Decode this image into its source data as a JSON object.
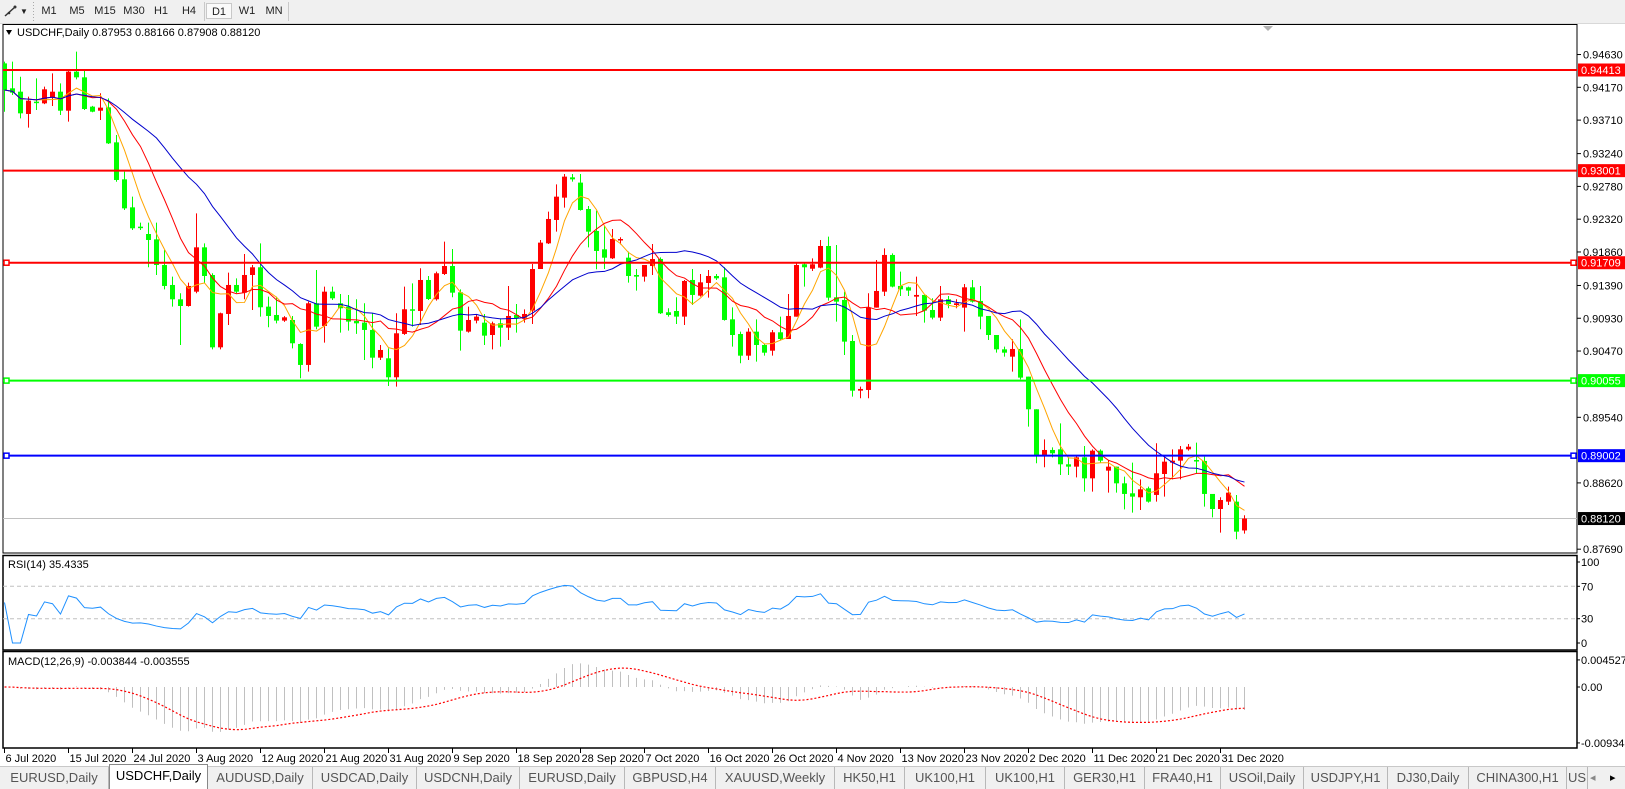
{
  "toolbar": {
    "drawing_tool_icon": "line-tool-icon",
    "timeframes": [
      "M1",
      "M5",
      "M15",
      "M30",
      "H1",
      "H4",
      "D1",
      "W1",
      "MN"
    ],
    "active_timeframe": "D1"
  },
  "chart": {
    "title": "USDCHF,Daily  0.87953 0.88166 0.87908 0.88120",
    "rsi_label": "RSI(14) 35.4335",
    "macd_label": "MACD(12,26,9) -0.003844 -0.003555"
  },
  "chart_data": {
    "type": "candlestick",
    "symbol": "USDCHF",
    "timeframe": "Daily",
    "ohlc_last": {
      "open": 0.87953,
      "high": 0.88166,
      "low": 0.87908,
      "close": 0.8812
    },
    "colors": {
      "bull": "#ff0000",
      "bear": "#00ff00",
      "ma_fast": "#ffa500",
      "ma_mid": "#ff0000",
      "ma_slow": "#0000cd",
      "rsi": "#1e90ff",
      "macd_hist": "#c0c0c0",
      "macd_signal": "#ff0000"
    },
    "price_axis": [
      "0.94630",
      "0.94170",
      "0.93710",
      "0.93240",
      "0.92780",
      "0.92320",
      "0.91860",
      "0.91390",
      "0.90930",
      "0.90470",
      "0.89540",
      "0.88620",
      "0.87690"
    ],
    "ylim": [
      0.87636,
      0.95044
    ],
    "levels": [
      {
        "value": "0.94413",
        "color": "#ff0000",
        "handles": false
      },
      {
        "value": "0.93001",
        "color": "#ff0000",
        "handles": false
      },
      {
        "value": "0.91709",
        "color": "#ff0000",
        "handles": true
      },
      {
        "value": "0.90055",
        "color": "#00ff00",
        "handles": true
      },
      {
        "value": "0.89002",
        "color": "#0000ff",
        "handles": true
      }
    ],
    "bid_line": {
      "value": "0.88120",
      "color": "#c0c0c0"
    },
    "date_labels": [
      "6 Jul 2020",
      "15 Jul 2020",
      "24 Jul 2020",
      "3 Aug 2020",
      "12 Aug 2020",
      "21 Aug 2020",
      "31 Aug 2020",
      "9 Sep 2020",
      "18 Sep 2020",
      "28 Sep 2020",
      "7 Oct 2020",
      "16 Oct 2020",
      "26 Oct 2020",
      "4 Nov 2020",
      "13 Nov 2020",
      "23 Nov 2020",
      "2 Dec 2020",
      "11 Dec 2020",
      "21 Dec 2020",
      "31 Dec 2020"
    ],
    "rsi_axis": [
      "100",
      "70",
      "30",
      "0"
    ],
    "rsi_levels": [
      70,
      30
    ],
    "macd_axis": [
      "0.004527",
      "0.00",
      "-0.009348"
    ],
    "macd_range": [
      -0.009348,
      0.004527
    ],
    "candles_ohlc": [
      [
        0.94506,
        0.9453,
        0.93828,
        0.94132
      ],
      [
        0.94156,
        0.9453,
        0.94062,
        0.94095
      ],
      [
        0.94109,
        0.94319,
        0.93735,
        0.93805
      ],
      [
        0.93796,
        0.94039,
        0.93604,
        0.93983
      ],
      [
        0.93969,
        0.94296,
        0.93852,
        0.93955
      ],
      [
        0.93945,
        0.9418,
        0.93935,
        0.94142
      ],
      [
        0.94025,
        0.94366,
        0.93908,
        0.94109
      ],
      [
        0.94109,
        0.94226,
        0.93782,
        0.93842
      ],
      [
        0.93842,
        0.94413,
        0.93688,
        0.9439
      ],
      [
        0.9439,
        0.9467,
        0.94282,
        0.9431
      ],
      [
        0.9431,
        0.94413,
        0.93852,
        0.93866
      ],
      [
        0.93899,
        0.9391,
        0.9382,
        0.93828
      ],
      [
        0.93842,
        0.94086,
        0.93712,
        0.93885
      ],
      [
        0.93889,
        0.94015,
        0.93375,
        0.93384
      ],
      [
        0.93398,
        0.93501,
        0.92846,
        0.9287
      ],
      [
        0.92879,
        0.92987,
        0.92449,
        0.92472
      ],
      [
        0.92486,
        0.92636,
        0.92168,
        0.92192
      ],
      [
        0.92215,
        0.92271,
        0.92168,
        0.92205
      ],
      [
        0.92112,
        0.92271,
        0.91645,
        0.92028
      ],
      [
        0.92037,
        0.92271,
        0.91537,
        0.91677
      ],
      [
        0.91677,
        0.91888,
        0.91336,
        0.91383
      ],
      [
        0.91397,
        0.91514,
        0.91093,
        0.91196
      ],
      [
        0.91196,
        0.9128,
        0.90555,
        0.91102
      ],
      [
        0.91102,
        0.9143,
        0.91093,
        0.91383
      ],
      [
        0.91303,
        0.92402,
        0.9128,
        0.91925
      ],
      [
        0.91925,
        0.91981,
        0.9142,
        0.91523
      ],
      [
        0.91537,
        0.91561,
        0.90494,
        0.90522
      ],
      [
        0.90522,
        0.91009,
        0.90494,
        0.91
      ],
      [
        0.9099,
        0.9157,
        0.90836,
        0.91397
      ],
      [
        0.91397,
        0.9149,
        0.9128,
        0.91303
      ],
      [
        0.91289,
        0.91832,
        0.91196,
        0.91537
      ],
      [
        0.91537,
        0.91677,
        0.91046,
        0.91645
      ],
      [
        0.91645,
        0.91981,
        0.90953,
        0.91084
      ],
      [
        0.91093,
        0.91233,
        0.90803,
        0.90962
      ],
      [
        0.90976,
        0.91233,
        0.90859,
        0.90897
      ],
      [
        0.90897,
        0.9096,
        0.9088,
        0.90943
      ],
      [
        0.90906,
        0.90962,
        0.90508,
        0.90579
      ],
      [
        0.90569,
        0.90579,
        0.90088,
        0.90275
      ],
      [
        0.90275,
        0.91163,
        0.90181,
        0.9114
      ],
      [
        0.9114,
        0.91607,
        0.90775,
        0.90812
      ],
      [
        0.90822,
        0.91374,
        0.90588,
        0.91303
      ],
      [
        0.91303,
        0.91374,
        0.91186,
        0.9121
      ],
      [
        0.9114,
        0.9127,
        0.90728,
        0.9107
      ],
      [
        0.91093,
        0.91256,
        0.90756,
        0.90883
      ],
      [
        0.90892,
        0.91196,
        0.9071,
        0.90859
      ],
      [
        0.90869,
        0.9114,
        0.90345,
        0.90766
      ],
      [
        0.90766,
        0.91,
        0.90228,
        0.90377
      ],
      [
        0.90377,
        0.90555,
        0.90345,
        0.90485
      ],
      [
        0.90368,
        0.90508,
        0.8998,
        0.90102
      ],
      [
        0.90102,
        0.91,
        0.89971,
        0.90719
      ],
      [
        0.9071,
        0.91374,
        0.90696,
        0.91056
      ],
      [
        0.91056,
        0.9142,
        0.90812,
        0.91046
      ],
      [
        0.91032,
        0.91631,
        0.90836,
        0.91467
      ],
      [
        0.91467,
        0.91523,
        0.91186,
        0.912
      ],
      [
        0.91196,
        0.91584,
        0.91177,
        0.91561
      ],
      [
        0.91551,
        0.92005,
        0.91537,
        0.91663
      ],
      [
        0.91663,
        0.91902,
        0.91224,
        0.91289
      ],
      [
        0.91294,
        0.91336,
        0.90475,
        0.90756
      ],
      [
        0.90742,
        0.91093,
        0.90728,
        0.90906
      ],
      [
        0.90897,
        0.9099,
        0.90859,
        0.90953
      ],
      [
        0.90868,
        0.9099,
        0.90555,
        0.90686
      ],
      [
        0.90695,
        0.90882,
        0.90494,
        0.90859
      ],
      [
        0.90859,
        0.90929,
        0.90532,
        0.90798
      ],
      [
        0.90798,
        0.91383,
        0.90625,
        0.90962
      ],
      [
        0.90976,
        0.9113,
        0.90728,
        0.90929
      ],
      [
        0.90929,
        0.91055,
        0.90868,
        0.9099
      ],
      [
        0.91037,
        0.91692,
        0.9085,
        0.91621
      ],
      [
        0.91621,
        0.92028,
        0.91621,
        0.91991
      ],
      [
        0.91981,
        0.92426,
        0.91972,
        0.92323
      ],
      [
        0.92309,
        0.92809,
        0.92145,
        0.92636
      ],
      [
        0.92622,
        0.92954,
        0.92482,
        0.92917
      ],
      [
        0.92907,
        0.92954,
        0.92847,
        0.92879
      ],
      [
        0.92833,
        0.92954,
        0.9244,
        0.92449
      ],
      [
        0.92463,
        0.92505,
        0.91925,
        0.92145
      ],
      [
        0.92155,
        0.9244,
        0.91617,
        0.91874
      ],
      [
        0.91897,
        0.92225,
        0.91621,
        0.9178
      ],
      [
        0.91771,
        0.92183,
        0.91762,
        0.92042
      ],
      [
        0.92033,
        0.92066,
        0.91967,
        0.92042
      ],
      [
        0.9178,
        0.91865,
        0.9143,
        0.91523
      ],
      [
        0.91537,
        0.91621,
        0.91317,
        0.91514
      ],
      [
        0.91514,
        0.91677,
        0.91444,
        0.91677
      ],
      [
        0.91663,
        0.91972,
        0.91537,
        0.91761
      ],
      [
        0.91762,
        0.91785,
        0.9099,
        0.91
      ],
      [
        0.91014,
        0.9107,
        0.90953,
        0.90976
      ],
      [
        0.91032,
        0.91224,
        0.9085,
        0.90953
      ],
      [
        0.90953,
        0.91467,
        0.90836,
        0.91453
      ],
      [
        0.91467,
        0.91621,
        0.91116,
        0.91257
      ],
      [
        0.91247,
        0.91551,
        0.91233,
        0.91434
      ],
      [
        0.91425,
        0.91607,
        0.91219,
        0.91523
      ],
      [
        0.91523,
        0.91551,
        0.91467,
        0.9149
      ],
      [
        0.91504,
        0.91645,
        0.90896,
        0.90906
      ],
      [
        0.90915,
        0.91083,
        0.90532,
        0.90695
      ],
      [
        0.90709,
        0.90742,
        0.90298,
        0.90405
      ],
      [
        0.90405,
        0.90789,
        0.90345,
        0.90742
      ],
      [
        0.90742,
        0.90915,
        0.90321,
        0.90555
      ],
      [
        0.90555,
        0.90578,
        0.90405,
        0.90447
      ],
      [
        0.90475,
        0.90765,
        0.90405,
        0.90733
      ],
      [
        0.90733,
        0.90953,
        0.90616,
        0.90639
      ],
      [
        0.90639,
        0.91271,
        0.90639,
        0.90962
      ],
      [
        0.90952,
        0.917,
        0.90952,
        0.91677
      ],
      [
        0.91687,
        0.917,
        0.91374,
        0.91645
      ],
      [
        0.91625,
        0.9177,
        0.91593,
        0.91687
      ],
      [
        0.9164,
        0.92028,
        0.91631,
        0.91944
      ],
      [
        0.91944,
        0.92075,
        0.91177,
        0.91219
      ],
      [
        0.91224,
        0.91958,
        0.90882,
        0.91163
      ],
      [
        0.91187,
        0.91304,
        0.90415,
        0.90602
      ],
      [
        0.90611,
        0.90695,
        0.8983,
        0.89914
      ],
      [
        0.89914,
        0.8997,
        0.89807,
        0.89938
      ],
      [
        0.89924,
        0.9128,
        0.89807,
        0.91079
      ],
      [
        0.91079,
        0.91748,
        0.91079,
        0.91313
      ],
      [
        0.91303,
        0.91911,
        0.91243,
        0.91818
      ],
      [
        0.91818,
        0.91841,
        0.91364,
        0.91374
      ],
      [
        0.91383,
        0.91584,
        0.91243,
        0.91336
      ],
      [
        0.91364,
        0.91374,
        0.91243,
        0.91318
      ],
      [
        0.91233,
        0.91514,
        0.90962,
        0.91257
      ],
      [
        0.91257,
        0.91257,
        0.90869,
        0.91037
      ],
      [
        0.91046,
        0.9121,
        0.90915,
        0.90939
      ],
      [
        0.90939,
        0.91383,
        0.90892,
        0.91196
      ],
      [
        0.91196,
        0.91243,
        0.9107,
        0.9113
      ],
      [
        0.91116,
        0.91196,
        0.9107,
        0.9114
      ],
      [
        0.91079,
        0.91411,
        0.90742,
        0.91364
      ],
      [
        0.91364,
        0.91467,
        0.91149,
        0.91163
      ],
      [
        0.91173,
        0.91383,
        0.90775,
        0.90953
      ],
      [
        0.90962,
        0.90962,
        0.90625,
        0.90695
      ],
      [
        0.90695,
        0.90695,
        0.90447,
        0.90494
      ],
      [
        0.90494,
        0.90532,
        0.90391,
        0.90447
      ],
      [
        0.90391,
        0.90635,
        0.90181,
        0.90499
      ],
      [
        0.90499,
        0.90915,
        0.90073,
        0.90097
      ],
      [
        0.90111,
        0.90111,
        0.89409,
        0.89653
      ],
      [
        0.89653,
        0.89653,
        0.88895,
        0.89012
      ],
      [
        0.89012,
        0.89231,
        0.88839,
        0.89082
      ],
      [
        0.89082,
        0.89119,
        0.88979,
        0.89035
      ],
      [
        0.89091,
        0.89456,
        0.88731,
        0.88881
      ],
      [
        0.88881,
        0.88979,
        0.88731,
        0.88848
      ],
      [
        0.88848,
        0.89012,
        0.88698,
        0.88979
      ],
      [
        0.88979,
        0.89138,
        0.88497,
        0.88684
      ],
      [
        0.88684,
        0.89091,
        0.88497,
        0.89072
      ],
      [
        0.89072,
        0.89091,
        0.88904,
        0.88932
      ],
      [
        0.88792,
        0.88941,
        0.88483,
        0.88848
      ],
      [
        0.88848,
        0.88848,
        0.88483,
        0.88614
      ],
      [
        0.88614,
        0.88708,
        0.88249,
        0.88465
      ],
      [
        0.88474,
        0.88904,
        0.88203,
        0.88427
      ],
      [
        0.88418,
        0.8867,
        0.8824,
        0.8853
      ],
      [
        0.88544,
        0.88567,
        0.88343,
        0.88357
      ],
      [
        0.88451,
        0.89176,
        0.88357,
        0.88755
      ],
      [
        0.88745,
        0.88979,
        0.88427,
        0.88918
      ],
      [
        0.88904,
        0.89091,
        0.8867,
        0.88932
      ],
      [
        0.88932,
        0.89138,
        0.8867,
        0.89091
      ],
      [
        0.89091,
        0.89166,
        0.89072,
        0.89128
      ],
      [
        0.88941,
        0.89185,
        0.88745,
        0.88932
      ],
      [
        0.88928,
        0.88988,
        0.88287,
        0.88465
      ],
      [
        0.88465,
        0.88465,
        0.88137,
        0.88254
      ],
      [
        0.88254,
        0.88418,
        0.87922,
        0.8838
      ],
      [
        0.88357,
        0.88568,
        0.8831,
        0.88483
      ],
      [
        0.88357,
        0.88451,
        0.87829,
        0.87936
      ],
      [
        0.87953,
        0.88166,
        0.87908,
        0.8812
      ]
    ]
  },
  "tabs": [
    {
      "label": "EURUSD,Daily",
      "active": false
    },
    {
      "label": "USDCHF,Daily",
      "active": true
    },
    {
      "label": "AUDUSD,Daily",
      "active": false
    },
    {
      "label": "USDCAD,Daily",
      "active": false
    },
    {
      "label": "USDCNH,Daily",
      "active": false
    },
    {
      "label": "EURUSD,Daily",
      "active": false
    },
    {
      "label": "GBPUSD,H4",
      "active": false
    },
    {
      "label": "XAUUSD,Weekly",
      "active": false
    },
    {
      "label": "HK50,H1",
      "active": false
    },
    {
      "label": "UK100,H1",
      "active": false
    },
    {
      "label": "UK100,H1",
      "active": false
    },
    {
      "label": "GER30,H1",
      "active": false
    },
    {
      "label": "FRA40,H1",
      "active": false
    },
    {
      "label": "USOil,Daily",
      "active": false
    },
    {
      "label": "USDJPY,H1",
      "active": false
    },
    {
      "label": "DJ30,Daily",
      "active": false
    },
    {
      "label": "CHINA300,H1",
      "active": false
    },
    {
      "label": "US",
      "active": false
    }
  ],
  "tab_scroll": {
    "left_icon": "triangle-left-icon",
    "right_icon": "triangle-right-icon"
  }
}
